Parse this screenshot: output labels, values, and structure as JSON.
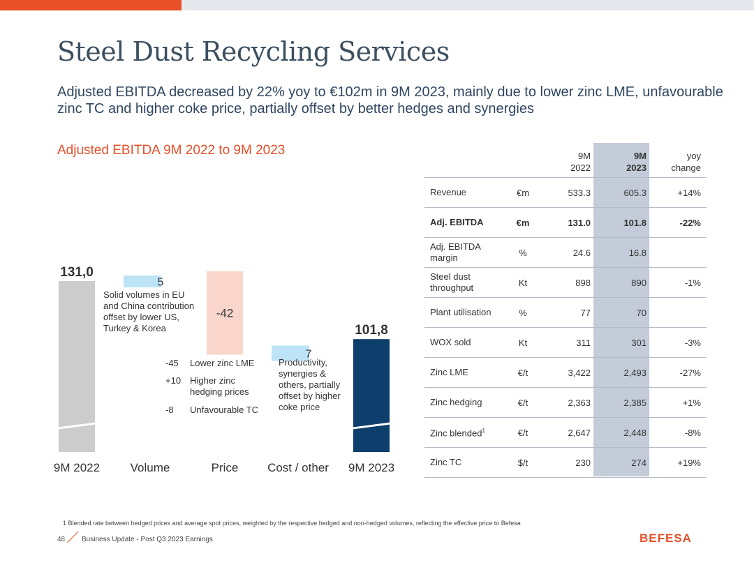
{
  "page": {
    "title": "Steel Dust Recycling Services",
    "subtitle": "Adjusted EBITDA decreased by 22% yoy to €102m in 9M 2023, mainly due to lower zinc LME, unfavourable zinc TC and higher coke price, partially offset by better hedges and synergies",
    "section_title": "Adjusted EBITDA 9M 2022 to 9M 2023",
    "footnote": "1  Blended rate between hedged prices and average spot prices, weighted by the respective hedged and non-hedged volumes, reflecting the effective price to Befesa",
    "footer_page": "48",
    "footer_text": "Business Update - Post Q3 2023 Earnings",
    "logo": "BEFESA"
  },
  "colors": {
    "accent": "#e8502a",
    "grey_bar": "#cccccc",
    "positive": "#bde3f7",
    "negative": "#f9d5cc",
    "total_2023": "#0e3e6c",
    "highlight_col": "#c3ccd8"
  },
  "chart_data": {
    "type": "waterfall",
    "title": "Adjusted EBITDA 9M 2022 to 9M 2023",
    "categories": [
      "9M 2022",
      "Volume",
      "Price",
      "Cost / other",
      "9M 2023"
    ],
    "values": [
      131.0,
      5,
      -42,
      7,
      101.8
    ],
    "labels": [
      "131,0",
      "5",
      "-42",
      "7",
      "101,8"
    ],
    "kinds": [
      "total",
      "delta",
      "delta",
      "delta",
      "total"
    ],
    "axis_break": true,
    "notes": {
      "volume": "Solid volumes in EU and China contribution offset by lower US, Turkey & Korea",
      "cost": "Productivity, synergies & others, partially offset by higher coke price"
    },
    "price_breakdown": [
      {
        "value": "-45",
        "label": "Lower zinc LME"
      },
      {
        "value": "+10",
        "label": "Higher zinc hedging prices"
      },
      {
        "value": "-8",
        "label": "Unfavourable TC"
      }
    ]
  },
  "table": {
    "headers": [
      "",
      "",
      "9M 2022",
      "9M 2023",
      "yoy change"
    ],
    "rows": [
      {
        "label": "Revenue",
        "unit": "€m",
        "v2022": "533.3",
        "v2023": "605.3",
        "chg": "+14%",
        "bold": false
      },
      {
        "label": "Adj. EBITDA",
        "unit": "€m",
        "v2022": "131.0",
        "v2023": "101.8",
        "chg": "-22%",
        "bold": true
      },
      {
        "label": "Adj. EBITDA margin",
        "unit": "%",
        "v2022": "24.6",
        "v2023": "16.8",
        "chg": "",
        "bold": false
      },
      {
        "label": "Steel dust throughput",
        "unit": "Kt",
        "v2022": "898",
        "v2023": "890",
        "chg": "-1%",
        "bold": false
      },
      {
        "label": "Plant utilisation",
        "unit": "%",
        "v2022": "77",
        "v2023": "70",
        "chg": "",
        "bold": false
      },
      {
        "label": "WOX sold",
        "unit": "Kt",
        "v2022": "311",
        "v2023": "301",
        "chg": "-3%",
        "bold": false
      },
      {
        "label": "Zinc LME",
        "unit": "€/t",
        "v2022": "3,422",
        "v2023": "2,493",
        "chg": "-27%",
        "bold": false
      },
      {
        "label": "Zinc hedging",
        "unit": "€/t",
        "v2022": "2,363",
        "v2023": "2,385",
        "chg": "+1%",
        "bold": false
      },
      {
        "label": "Zinc blended",
        "sup": "1",
        "unit": "€/t",
        "v2022": "2,647",
        "v2023": "2,448",
        "chg": "-8%",
        "bold": false
      },
      {
        "label": "Zinc TC",
        "unit": "$/t",
        "v2022": "230",
        "v2023": "274",
        "chg": "+19%",
        "bold": false
      }
    ]
  }
}
